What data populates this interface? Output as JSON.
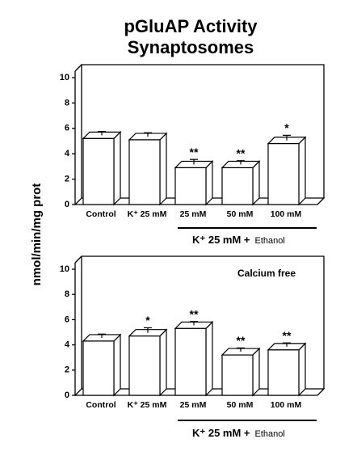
{
  "title": [
    "pGluAP Activity",
    "Synaptosomes"
  ],
  "ylabel": "nmol/min/mg prot",
  "chart_data": [
    {
      "type": "bar",
      "categories": [
        "Control",
        "K⁺ 25 mM",
        "25 mM",
        "50 mM",
        "100 mM"
      ],
      "values": [
        5.2,
        5.1,
        2.9,
        2.9,
        4.8
      ],
      "errors": [
        0.3,
        0.3,
        0.4,
        0.3,
        0.4
      ],
      "annotations": [
        null,
        null,
        "**",
        "**",
        "*"
      ],
      "group_label": {
        "text": "K⁺ 25 mM +",
        "sub": "Ethanol"
      },
      "ylim": [
        0,
        10
      ],
      "yticks": [
        0,
        2,
        4,
        6,
        8,
        10
      ],
      "color": "#ffffff"
    },
    {
      "type": "bar",
      "note": "Calcium free",
      "categories": [
        "Control",
        "K⁺ 25 mM",
        "25 mM",
        "50 mM",
        "100 mM"
      ],
      "values": [
        4.3,
        4.7,
        5.3,
        3.2,
        3.6
      ],
      "errors": [
        0.3,
        0.4,
        0.3,
        0.3,
        0.3
      ],
      "annotations": [
        null,
        "*",
        "**",
        "**",
        "**"
      ],
      "group_label": {
        "text": "K⁺ 25 mM +",
        "sub": "Ethanol"
      },
      "ylim": [
        0,
        10
      ],
      "yticks": [
        0,
        2,
        4,
        6,
        8,
        10
      ],
      "color": "#ffffff"
    }
  ]
}
